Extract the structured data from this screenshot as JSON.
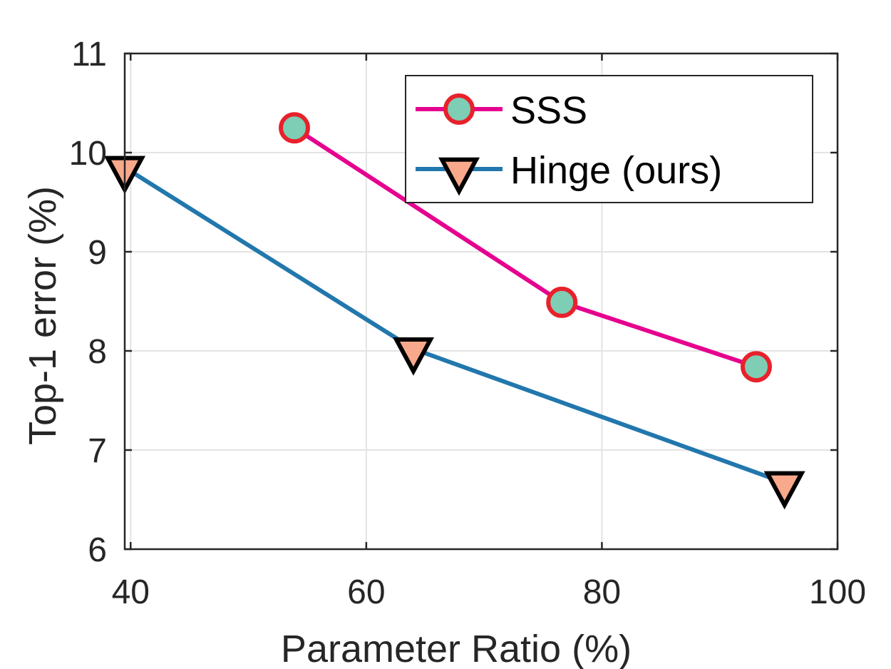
{
  "chart_data": {
    "type": "line",
    "title": "",
    "xlabel": "Parameter Ratio (%)",
    "ylabel": "Top-1 error (%)",
    "xlim": [
      39.5,
      100
    ],
    "ylim": [
      6,
      11
    ],
    "xticks": [
      40,
      60,
      80,
      100
    ],
    "yticks": [
      6,
      7,
      8,
      9,
      10,
      11
    ],
    "xtick_labels": [
      "40",
      "60",
      "80",
      "100"
    ],
    "ytick_labels": [
      "6",
      "7",
      "8",
      "9",
      "10",
      "11"
    ],
    "grid": true,
    "legend_position": "top-right",
    "series": [
      {
        "name": "SSS",
        "color": "#e6008f",
        "marker": "circle",
        "marker_fill": "#7ecdb5",
        "marker_edge": "#e8212b",
        "x": [
          53.9,
          76.6,
          93.1
        ],
        "y": [
          10.25,
          8.49,
          7.84
        ]
      },
      {
        "name": "Hinge (ours)",
        "color": "#2277ad",
        "marker": "triangle-down",
        "marker_fill": "#f8a98b",
        "marker_edge": "#000000",
        "x": [
          39.5,
          64.0,
          95.5
        ],
        "y": [
          9.85,
          8.02,
          6.67
        ]
      }
    ]
  }
}
